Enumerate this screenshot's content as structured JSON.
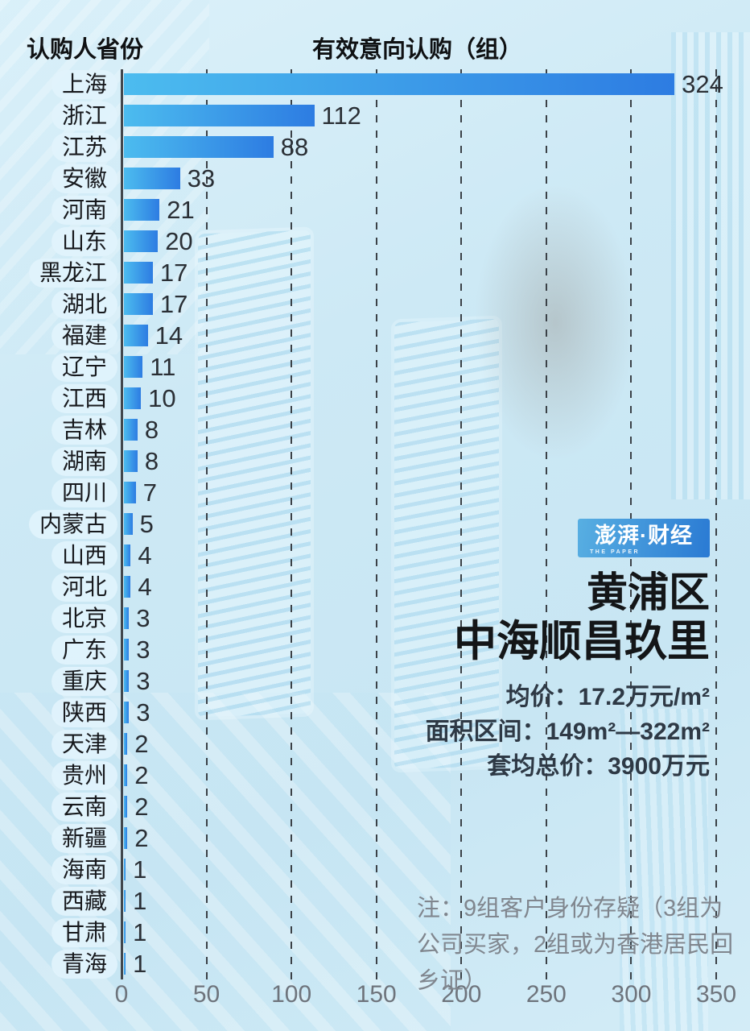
{
  "header": {
    "left_title": "认购人省份",
    "right_title": "有效意向认购（组）"
  },
  "chart_data": {
    "type": "bar",
    "orientation": "horizontal",
    "title": "有效意向认购（组）",
    "categories": [
      "上海",
      "浙江",
      "江苏",
      "安徽",
      "河南",
      "山东",
      "黑龙江",
      "湖北",
      "福建",
      "辽宁",
      "江西",
      "吉林",
      "湖南",
      "四川",
      "内蒙古",
      "山西",
      "河北",
      "北京",
      "广东",
      "重庆",
      "陕西",
      "天津",
      "贵州",
      "云南",
      "新疆",
      "海南",
      "西藏",
      "甘肃",
      "青海"
    ],
    "values": [
      324,
      112,
      88,
      33,
      21,
      20,
      17,
      17,
      14,
      11,
      10,
      8,
      8,
      7,
      5,
      4,
      4,
      3,
      3,
      3,
      3,
      2,
      2,
      2,
      2,
      1,
      1,
      1,
      1
    ],
    "x_ticks": [
      0,
      50,
      100,
      150,
      200,
      250,
      300,
      350
    ],
    "xlim": [
      0,
      350
    ],
    "grid": "dashed-vertical",
    "bar_color_start": "#4cbcef",
    "bar_color_end": "#2d7ce2"
  },
  "info_panel": {
    "logo": {
      "text": "澎湃·财经",
      "subtext": "THE PAPER"
    },
    "title_line1": "黄浦区",
    "title_line2": "中海顺昌玖里",
    "stats": {
      "line1": "均价：17.2万元/m²",
      "line2": "面积区间：149m²—322m²",
      "line3": "套均总价：3900万元"
    }
  },
  "note": "注：9组客户身份存疑（3组为公司买家，2组或为香港居民回乡证）"
}
